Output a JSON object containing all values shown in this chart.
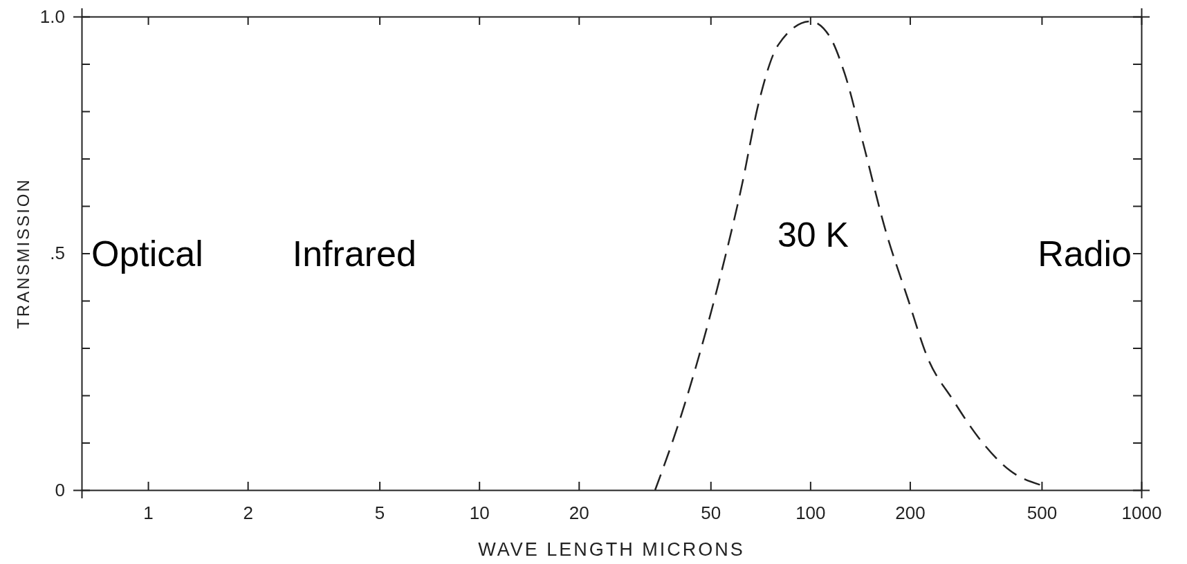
{
  "chart_data": {
    "type": "line",
    "xlabel": "WAVE LENGTH  MICRONS",
    "ylabel": "TRANSMISSION",
    "log": "x",
    "xlim": [
      0.63,
      1000
    ],
    "ylim": [
      0,
      1
    ],
    "xticks": [
      1,
      2,
      5,
      10,
      20,
      50,
      100,
      200,
      500,
      1000
    ],
    "yticks": [
      0,
      {
        "value": 0.1,
        "label": null
      },
      {
        "value": 0.2,
        "label": null
      },
      {
        "value": 0.3,
        "label": null
      },
      {
        "value": 0.4,
        "label": null
      },
      {
        "value": 0.5,
        "label": ".5"
      },
      {
        "value": 0.6,
        "label": null
      },
      {
        "value": 0.7,
        "label": null
      },
      {
        "value": 0.8,
        "label": null
      },
      {
        "value": 0.9,
        "label": null
      },
      {
        "value": 1,
        "label": "1.0"
      }
    ],
    "grid": false,
    "legend": false,
    "marker": "none",
    "line_style": "dashed",
    "annotations": [
      "Optical",
      "Infrared",
      "Radio"
    ],
    "series": [
      {
        "name": "30 K",
        "color": "#222222",
        "x": [
          34,
          40,
          46,
          53,
          62,
          70,
          80,
          100,
          114,
          127,
          146,
          167,
          198,
          226,
          270,
          323,
          403,
          500
        ],
        "values": [
          0,
          0.14,
          0.28,
          0.44,
          0.64,
          0.82,
          0.94,
          0.99,
          0.96,
          0.88,
          0.72,
          0.56,
          0.4,
          0.28,
          0.19,
          0.11,
          0.04,
          0.01
        ]
      }
    ]
  }
}
